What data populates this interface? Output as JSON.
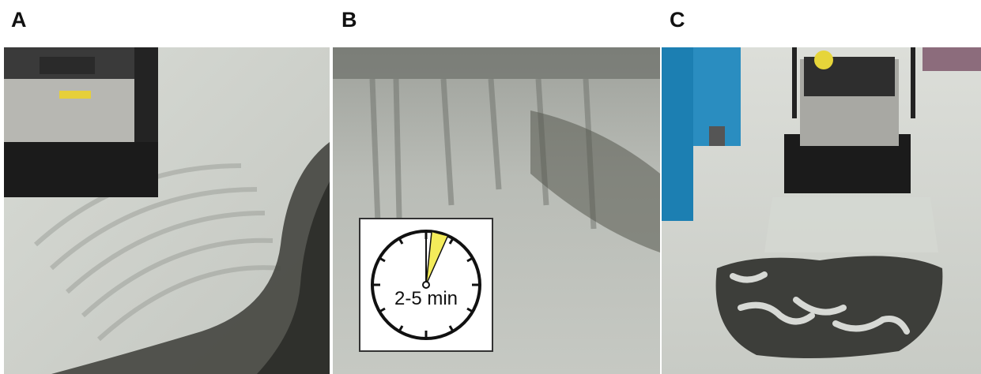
{
  "panels": [
    {
      "label": "A"
    },
    {
      "label": "B"
    },
    {
      "label": "C"
    }
  ],
  "timer": {
    "text": "2-5 min",
    "color": "#f4ec5a"
  },
  "colors": {
    "floor": "#c9ccc6",
    "wet_floor": "#3e3f3b",
    "machine_body": "#2b2b2b",
    "machine_panel": "#b9b9b4",
    "blue_post": "#1c7fb2"
  }
}
